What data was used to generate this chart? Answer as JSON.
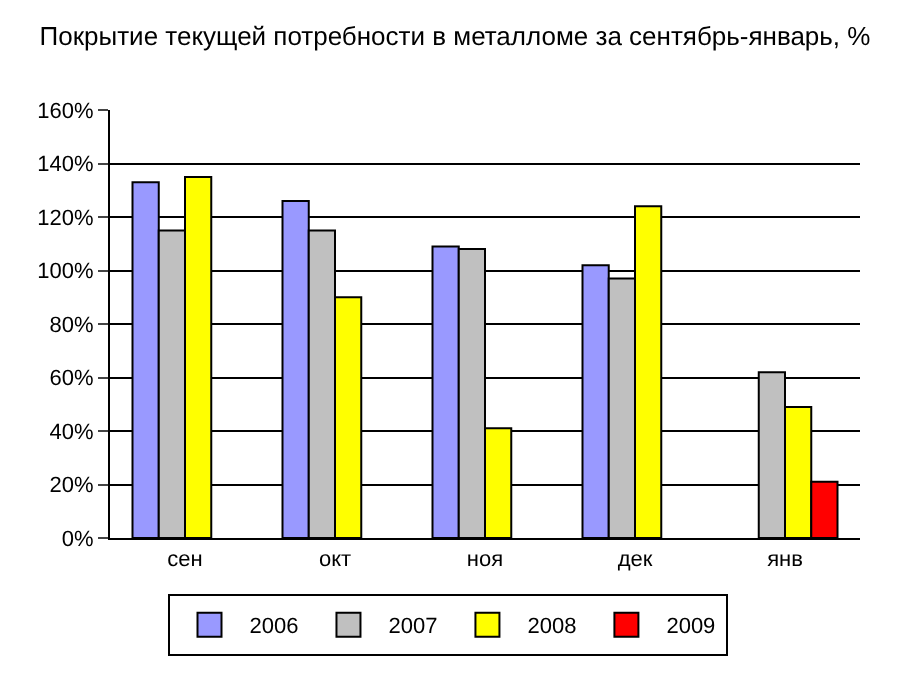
{
  "chart_data": {
    "type": "bar",
    "title": "Покрытие текущей потребности в металломе за сентябрь-январь, %",
    "categories": [
      "сен",
      "окт",
      "ноя",
      "дек",
      "янв"
    ],
    "series": [
      {
        "name": "2006",
        "color": "#9999ff",
        "values": [
          133,
          126,
          109,
          102,
          null
        ]
      },
      {
        "name": "2007",
        "color": "#c0c0c0",
        "values": [
          115,
          115,
          108,
          97,
          62
        ]
      },
      {
        "name": "2008",
        "color": "#ffff00",
        "values": [
          135,
          90,
          41,
          124,
          49
        ]
      },
      {
        "name": "2009",
        "color": "#ff0000",
        "values": [
          null,
          null,
          null,
          null,
          21
        ]
      }
    ],
    "ylim": [
      0,
      160
    ],
    "yticks": [
      {
        "value": 0,
        "label": "0%"
      },
      {
        "value": 20,
        "label": "20%"
      },
      {
        "value": 40,
        "label": "40%"
      },
      {
        "value": 60,
        "label": "60%"
      },
      {
        "value": 80,
        "label": "80%"
      },
      {
        "value": 100,
        "label": "100%"
      },
      {
        "value": 120,
        "label": "120%"
      },
      {
        "value": 140,
        "label": "140%"
      },
      {
        "value": 160,
        "label": "160%"
      }
    ],
    "grid": "y",
    "legend": "bottom"
  }
}
